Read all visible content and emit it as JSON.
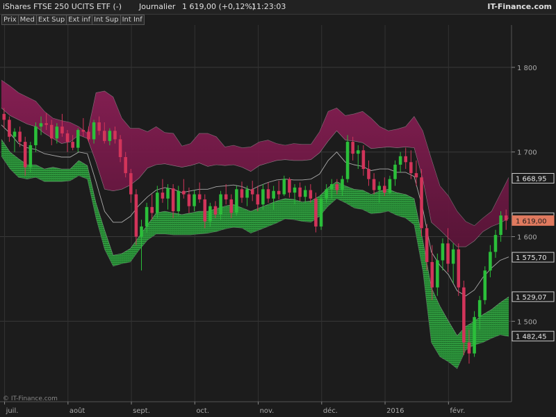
{
  "header": {
    "instrument": "iShares FTSE 250 UCITS ETF (-)",
    "period": "Journalier",
    "last": "1 619,00 (+0,12%)",
    "time": "11:23:03",
    "brand": "IT-Finance.com"
  },
  "legend": [
    "Prix",
    "Med",
    "Ext Sup",
    "Ext inf",
    "Int Sup",
    "Int Inf"
  ],
  "credit": "© IT-Finance.com",
  "colors": {
    "background": "#1c1c1c",
    "up": "#2bbf3a",
    "down": "#d2345a",
    "upper_band": "#8a1f55",
    "lower_band": "#2a9a38",
    "median": "#bbbbbb",
    "last_flag": "#e07a5f"
  },
  "chart_data": {
    "type": "candlestick",
    "x_labels": [
      "juil.",
      "août",
      "sept.",
      "oct.",
      "nov.",
      "déc.",
      "2016",
      "févr."
    ],
    "y_ticks": [
      "1 800",
      "1 700",
      "1 600",
      "1 500"
    ],
    "y_tick_values": [
      1800,
      1700,
      1600,
      1500
    ],
    "ylim": [
      1405,
      1850
    ],
    "grid": true,
    "price_flags": [
      {
        "label": "1 668,95",
        "value": 1668.95,
        "type": "band"
      },
      {
        "label": "1 622,33",
        "value": 1622.33,
        "type": "band"
      },
      {
        "label": "1 619,00",
        "value": 1619.0,
        "type": "last"
      },
      {
        "label": "1 575,70",
        "value": 1575.7,
        "type": "band"
      },
      {
        "label": "1 529,07",
        "value": 1529.07,
        "type": "band"
      },
      {
        "label": "1 482,45",
        "value": 1482.45,
        "type": "band"
      }
    ],
    "bands": {
      "ext_sup": [
        1785,
        1778,
        1770,
        1765,
        1760,
        1748,
        1740,
        1737,
        1735,
        1730,
        1722,
        1770,
        1772,
        1765,
        1740,
        1728,
        1728,
        1724,
        1730,
        1723,
        1722,
        1707,
        1710,
        1722,
        1722,
        1718,
        1706,
        1708,
        1705,
        1706,
        1712,
        1714,
        1710,
        1708,
        1710,
        1709,
        1709,
        1724,
        1748,
        1752,
        1743,
        1745,
        1748,
        1740,
        1730,
        1725,
        1727,
        1730,
        1742,
        1725,
        1692,
        1660,
        1648,
        1630,
        1618,
        1613,
        1622,
        1630,
        1650,
        1670
      ],
      "int_sup": [
        1752,
        1743,
        1738,
        1733,
        1730,
        1722,
        1716,
        1710,
        1712,
        1720,
        1716,
        1688,
        1656,
        1654,
        1656,
        1661,
        1669,
        1681,
        1685,
        1686,
        1684,
        1682,
        1684,
        1687,
        1683,
        1685,
        1684,
        1685,
        1682,
        1677,
        1684,
        1687,
        1690,
        1691,
        1690,
        1690,
        1691,
        1699,
        1713,
        1725,
        1714,
        1713,
        1711,
        1704,
        1705,
        1706,
        1705,
        1706,
        1705,
        1668,
        1617,
        1608,
        1598,
        1588,
        1588,
        1595,
        1606,
        1612,
        1616,
        1622
      ],
      "median": [
        1732,
        1722,
        1710,
        1705,
        1703,
        1698,
        1696,
        1694,
        1694,
        1700,
        1698,
        1665,
        1630,
        1617,
        1617,
        1624,
        1637,
        1647,
        1655,
        1658,
        1656,
        1652,
        1654,
        1656,
        1656,
        1659,
        1660,
        1661,
        1659,
        1655,
        1660,
        1664,
        1667,
        1668,
        1667,
        1667,
        1668,
        1674,
        1690,
        1700,
        1688,
        1685,
        1683,
        1678,
        1680,
        1680,
        1676,
        1676,
        1671,
        1633,
        1582,
        1566,
        1555,
        1536,
        1530,
        1537,
        1552,
        1563,
        1572,
        1576
      ],
      "int_inf": [
        1715,
        1700,
        1692,
        1685,
        1685,
        1680,
        1682,
        1680,
        1680,
        1690,
        1684,
        1640,
        1608,
        1578,
        1580,
        1586,
        1600,
        1614,
        1628,
        1630,
        1628,
        1626,
        1628,
        1630,
        1630,
        1633,
        1636,
        1638,
        1634,
        1630,
        1634,
        1638,
        1642,
        1645,
        1644,
        1641,
        1642,
        1648,
        1658,
        1665,
        1660,
        1656,
        1655,
        1650,
        1654,
        1656,
        1652,
        1650,
        1645,
        1596,
        1540,
        1518,
        1500,
        1483,
        1494,
        1500,
        1508,
        1514,
        1522,
        1529
      ],
      "ext_inf": [
        1695,
        1680,
        1670,
        1668,
        1670,
        1665,
        1665,
        1665,
        1666,
        1672,
        1668,
        1622,
        1585,
        1565,
        1568,
        1570,
        1584,
        1596,
        1603,
        1603,
        1602,
        1602,
        1602,
        1603,
        1604,
        1606,
        1609,
        1611,
        1610,
        1604,
        1608,
        1612,
        1616,
        1621,
        1620,
        1618,
        1617,
        1624,
        1636,
        1645,
        1640,
        1634,
        1632,
        1627,
        1628,
        1630,
        1625,
        1622,
        1614,
        1560,
        1475,
        1458,
        1452,
        1444,
        1466,
        1472,
        1475,
        1480,
        1484,
        1482
      ]
    },
    "candles": [
      {
        "o": 1745,
        "h": 1752,
        "l": 1728,
        "c": 1738
      },
      {
        "o": 1738,
        "h": 1742,
        "l": 1712,
        "c": 1718
      },
      {
        "o": 1718,
        "h": 1728,
        "l": 1700,
        "c": 1724
      },
      {
        "o": 1724,
        "h": 1730,
        "l": 1706,
        "c": 1712
      },
      {
        "o": 1712,
        "h": 1718,
        "l": 1672,
        "c": 1682
      },
      {
        "o": 1682,
        "h": 1712,
        "l": 1676,
        "c": 1708
      },
      {
        "o": 1708,
        "h": 1735,
        "l": 1700,
        "c": 1730
      },
      {
        "o": 1730,
        "h": 1742,
        "l": 1720,
        "c": 1734
      },
      {
        "o": 1734,
        "h": 1746,
        "l": 1726,
        "c": 1732
      },
      {
        "o": 1732,
        "h": 1738,
        "l": 1708,
        "c": 1716
      },
      {
        "o": 1716,
        "h": 1734,
        "l": 1710,
        "c": 1730
      },
      {
        "o": 1730,
        "h": 1745,
        "l": 1718,
        "c": 1722
      },
      {
        "o": 1722,
        "h": 1726,
        "l": 1700,
        "c": 1712
      },
      {
        "o": 1712,
        "h": 1720,
        "l": 1702,
        "c": 1705
      },
      {
        "o": 1705,
        "h": 1728,
        "l": 1700,
        "c": 1726
      },
      {
        "o": 1726,
        "h": 1740,
        "l": 1718,
        "c": 1724
      },
      {
        "o": 1724,
        "h": 1730,
        "l": 1712,
        "c": 1715
      },
      {
        "o": 1715,
        "h": 1738,
        "l": 1710,
        "c": 1735
      },
      {
        "o": 1735,
        "h": 1742,
        "l": 1720,
        "c": 1725
      },
      {
        "o": 1725,
        "h": 1735,
        "l": 1710,
        "c": 1713
      },
      {
        "o": 1713,
        "h": 1728,
        "l": 1708,
        "c": 1725
      },
      {
        "o": 1725,
        "h": 1730,
        "l": 1710,
        "c": 1715
      },
      {
        "o": 1715,
        "h": 1720,
        "l": 1688,
        "c": 1694
      },
      {
        "o": 1694,
        "h": 1700,
        "l": 1670,
        "c": 1675
      },
      {
        "o": 1675,
        "h": 1680,
        "l": 1640,
        "c": 1650
      },
      {
        "o": 1650,
        "h": 1656,
        "l": 1590,
        "c": 1600
      },
      {
        "o": 1600,
        "h": 1620,
        "l": 1560,
        "c": 1612
      },
      {
        "o": 1612,
        "h": 1640,
        "l": 1605,
        "c": 1635
      },
      {
        "o": 1635,
        "h": 1650,
        "l": 1620,
        "c": 1628
      },
      {
        "o": 1628,
        "h": 1660,
        "l": 1622,
        "c": 1652
      },
      {
        "o": 1652,
        "h": 1668,
        "l": 1640,
        "c": 1645
      },
      {
        "o": 1645,
        "h": 1662,
        "l": 1632,
        "c": 1657
      },
      {
        "o": 1657,
        "h": 1662,
        "l": 1622,
        "c": 1630
      },
      {
        "o": 1630,
        "h": 1660,
        "l": 1625,
        "c": 1654
      },
      {
        "o": 1654,
        "h": 1668,
        "l": 1645,
        "c": 1650
      },
      {
        "o": 1650,
        "h": 1658,
        "l": 1628,
        "c": 1636
      },
      {
        "o": 1636,
        "h": 1655,
        "l": 1630,
        "c": 1650
      },
      {
        "o": 1650,
        "h": 1664,
        "l": 1640,
        "c": 1644
      },
      {
        "o": 1644,
        "h": 1650,
        "l": 1610,
        "c": 1618
      },
      {
        "o": 1618,
        "h": 1640,
        "l": 1612,
        "c": 1636
      },
      {
        "o": 1636,
        "h": 1642,
        "l": 1622,
        "c": 1626
      },
      {
        "o": 1626,
        "h": 1654,
        "l": 1620,
        "c": 1650
      },
      {
        "o": 1650,
        "h": 1662,
        "l": 1638,
        "c": 1644
      },
      {
        "o": 1644,
        "h": 1650,
        "l": 1622,
        "c": 1628
      },
      {
        "o": 1628,
        "h": 1660,
        "l": 1625,
        "c": 1656
      },
      {
        "o": 1656,
        "h": 1665,
        "l": 1640,
        "c": 1646
      },
      {
        "o": 1646,
        "h": 1660,
        "l": 1636,
        "c": 1656
      },
      {
        "o": 1656,
        "h": 1666,
        "l": 1642,
        "c": 1650
      },
      {
        "o": 1650,
        "h": 1660,
        "l": 1630,
        "c": 1638
      },
      {
        "o": 1638,
        "h": 1662,
        "l": 1632,
        "c": 1656
      },
      {
        "o": 1656,
        "h": 1664,
        "l": 1640,
        "c": 1645
      },
      {
        "o": 1645,
        "h": 1660,
        "l": 1632,
        "c": 1654
      },
      {
        "o": 1654,
        "h": 1666,
        "l": 1644,
        "c": 1650
      },
      {
        "o": 1650,
        "h": 1672,
        "l": 1648,
        "c": 1668
      },
      {
        "o": 1668,
        "h": 1670,
        "l": 1646,
        "c": 1652
      },
      {
        "o": 1652,
        "h": 1662,
        "l": 1638,
        "c": 1658
      },
      {
        "o": 1658,
        "h": 1664,
        "l": 1642,
        "c": 1647
      },
      {
        "o": 1647,
        "h": 1660,
        "l": 1640,
        "c": 1655
      },
      {
        "o": 1655,
        "h": 1662,
        "l": 1640,
        "c": 1645
      },
      {
        "o": 1645,
        "h": 1652,
        "l": 1605,
        "c": 1612
      },
      {
        "o": 1612,
        "h": 1650,
        "l": 1608,
        "c": 1645
      },
      {
        "o": 1645,
        "h": 1662,
        "l": 1640,
        "c": 1656
      },
      {
        "o": 1656,
        "h": 1668,
        "l": 1645,
        "c": 1662
      },
      {
        "o": 1662,
        "h": 1668,
        "l": 1650,
        "c": 1655
      },
      {
        "o": 1655,
        "h": 1672,
        "l": 1648,
        "c": 1668
      },
      {
        "o": 1668,
        "h": 1720,
        "l": 1664,
        "c": 1712
      },
      {
        "o": 1712,
        "h": 1718,
        "l": 1690,
        "c": 1698
      },
      {
        "o": 1698,
        "h": 1708,
        "l": 1680,
        "c": 1702
      },
      {
        "o": 1702,
        "h": 1708,
        "l": 1672,
        "c": 1680
      },
      {
        "o": 1680,
        "h": 1690,
        "l": 1660,
        "c": 1668
      },
      {
        "o": 1668,
        "h": 1675,
        "l": 1650,
        "c": 1655
      },
      {
        "o": 1655,
        "h": 1665,
        "l": 1640,
        "c": 1660
      },
      {
        "o": 1660,
        "h": 1670,
        "l": 1648,
        "c": 1652
      },
      {
        "o": 1652,
        "h": 1672,
        "l": 1650,
        "c": 1668
      },
      {
        "o": 1668,
        "h": 1690,
        "l": 1660,
        "c": 1685
      },
      {
        "o": 1685,
        "h": 1700,
        "l": 1676,
        "c": 1695
      },
      {
        "o": 1695,
        "h": 1705,
        "l": 1680,
        "c": 1688
      },
      {
        "o": 1688,
        "h": 1702,
        "l": 1668,
        "c": 1675
      },
      {
        "o": 1675,
        "h": 1690,
        "l": 1660,
        "c": 1670
      },
      {
        "o": 1670,
        "h": 1680,
        "l": 1600,
        "c": 1610
      },
      {
        "o": 1610,
        "h": 1615,
        "l": 1560,
        "c": 1570
      },
      {
        "o": 1570,
        "h": 1590,
        "l": 1525,
        "c": 1540
      },
      {
        "o": 1540,
        "h": 1580,
        "l": 1530,
        "c": 1572
      },
      {
        "o": 1572,
        "h": 1598,
        "l": 1560,
        "c": 1592
      },
      {
        "o": 1592,
        "h": 1610,
        "l": 1558,
        "c": 1568
      },
      {
        "o": 1568,
        "h": 1592,
        "l": 1545,
        "c": 1585
      },
      {
        "o": 1585,
        "h": 1592,
        "l": 1530,
        "c": 1540
      },
      {
        "o": 1540,
        "h": 1548,
        "l": 1460,
        "c": 1475
      },
      {
        "o": 1475,
        "h": 1490,
        "l": 1450,
        "c": 1462
      },
      {
        "o": 1462,
        "h": 1512,
        "l": 1458,
        "c": 1505
      },
      {
        "o": 1505,
        "h": 1530,
        "l": 1490,
        "c": 1525
      },
      {
        "o": 1525,
        "h": 1565,
        "l": 1520,
        "c": 1560
      },
      {
        "o": 1560,
        "h": 1590,
        "l": 1552,
        "c": 1582
      },
      {
        "o": 1582,
        "h": 1608,
        "l": 1575,
        "c": 1602
      },
      {
        "o": 1602,
        "h": 1630,
        "l": 1594,
        "c": 1625
      },
      {
        "o": 1625,
        "h": 1632,
        "l": 1608,
        "c": 1619
      }
    ]
  }
}
